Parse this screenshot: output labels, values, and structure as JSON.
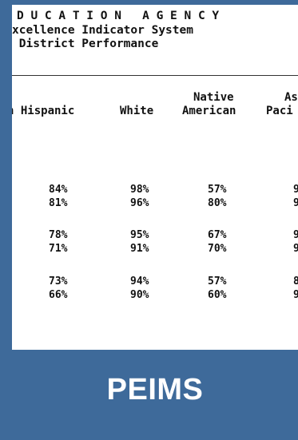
{
  "document": {
    "header_lines": [
      "D U C A T I O N   A G E N C Y",
      "xcellence Indicator System",
      " District Performance"
    ],
    "columns": [
      {
        "line1": "",
        "line2": "n Hispanic"
      },
      {
        "line1": "",
        "line2": "White"
      },
      {
        "line1": "Native",
        "line2": "American"
      },
      {
        "line1": "As",
        "line2": "Paci"
      }
    ],
    "rows": [
      [
        "84%",
        "98%",
        "57%",
        "9"
      ],
      [
        "81%",
        "96%",
        "80%",
        "9"
      ],
      [
        "78%",
        "95%",
        "67%",
        "9"
      ],
      [
        "71%",
        "91%",
        "70%",
        "9"
      ],
      [
        "73%",
        "94%",
        "57%",
        "8"
      ],
      [
        "66%",
        "90%",
        "60%",
        "9"
      ]
    ]
  },
  "banner": {
    "label": "PEIMS"
  },
  "colors": {
    "frame_blue": "#3e6a9a",
    "text": "#111111",
    "banner_text": "#ffffff"
  }
}
